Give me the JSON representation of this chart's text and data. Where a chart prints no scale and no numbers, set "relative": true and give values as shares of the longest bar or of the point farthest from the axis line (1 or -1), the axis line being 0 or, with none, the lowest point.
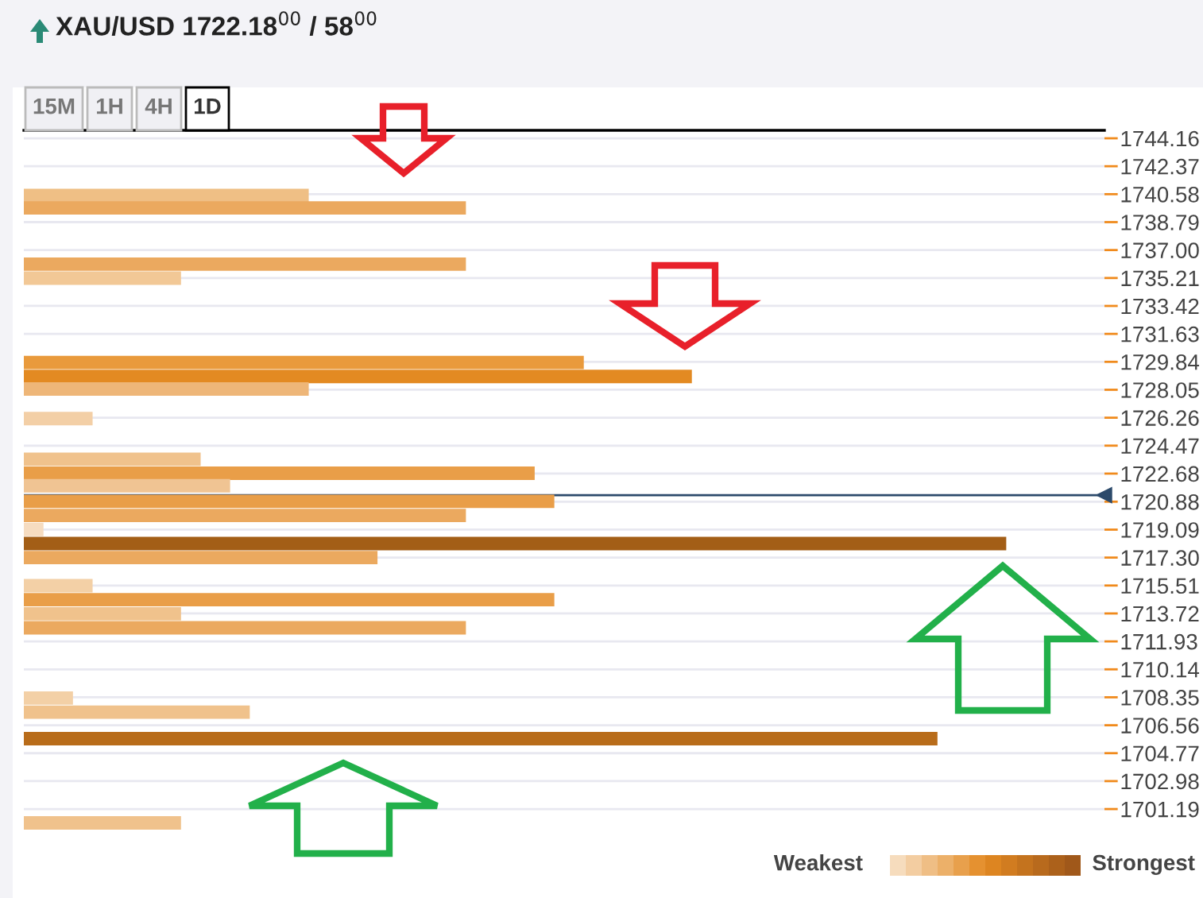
{
  "chart_data": {
    "type": "bar",
    "orientation": "horizontal",
    "relative": true,
    "title": "XAU/USD 1722.18$^{00}$ / 58$^{00}$",
    "annotations": [
      "15M",
      "1H",
      "4H",
      "1D",
      "Weakest",
      "Strongest"
    ],
    "x": [
      1740.5,
      1739.7,
      1736.1,
      1735.2,
      1729.8,
      1728.9,
      1728.1,
      1726.2,
      1723.6,
      1722.7,
      1721.9,
      1720.9,
      1720.0,
      1719.1,
      1718.2,
      1717.3,
      1715.5,
      1714.6,
      1713.7,
      1712.8,
      1708.3,
      1707.4,
      1705.7,
      1700.3
    ],
    "values": [
      0.29,
      0.45,
      0.45,
      0.16,
      0.57,
      0.68,
      0.29,
      0.07,
      0.18,
      0.52,
      0.21,
      0.54,
      0.45,
      0.02,
      1,
      0.36,
      0.07,
      0.54,
      0.16,
      0.45,
      0.05,
      0.23,
      0.93,
      0.16
    ],
    "colors": [
      "#efbf85",
      "#eba95f",
      "#eba95f",
      "#f2c896",
      "#e99a3c",
      "#e38a22",
      "#eeb678",
      "#f3cfa6",
      "#f0c28c",
      "#e99e48",
      "#f0c493",
      "#e99e48",
      "#eba95f",
      "#f6dcc0",
      "#a35e16",
      "#eba95f",
      "#f3d0a6",
      "#e99e48",
      "#f0c28c",
      "#eba95f",
      "#f3d0a6",
      "#f0c28c",
      "#b86c1a",
      "#f0c28c"
    ],
    "ylim": [
      1699.87,
      1744.67
    ],
    "yticks": [
      1744.16,
      1742.37,
      1740.58,
      1738.79,
      {
        "value": 1737,
        "label": "1737.00"
      },
      1735.21,
      1733.42,
      1731.63,
      1729.84,
      1728.05,
      1726.26,
      1724.47,
      1722.68,
      1720.88,
      1719.09,
      {
        "value": 1717.3,
        "label": "1717.30"
      },
      1715.51,
      1713.72,
      1711.93,
      1710.14,
      1708.35,
      1706.56,
      1704.77,
      1702.98,
      1701.19
    ],
    "ref_lines": [
      {
        "axis": "y",
        "value": 1721.3,
        "color": "#2c4a6b"
      }
    ],
    "grid": "y",
    "tick_labels": "y"
  }
}
